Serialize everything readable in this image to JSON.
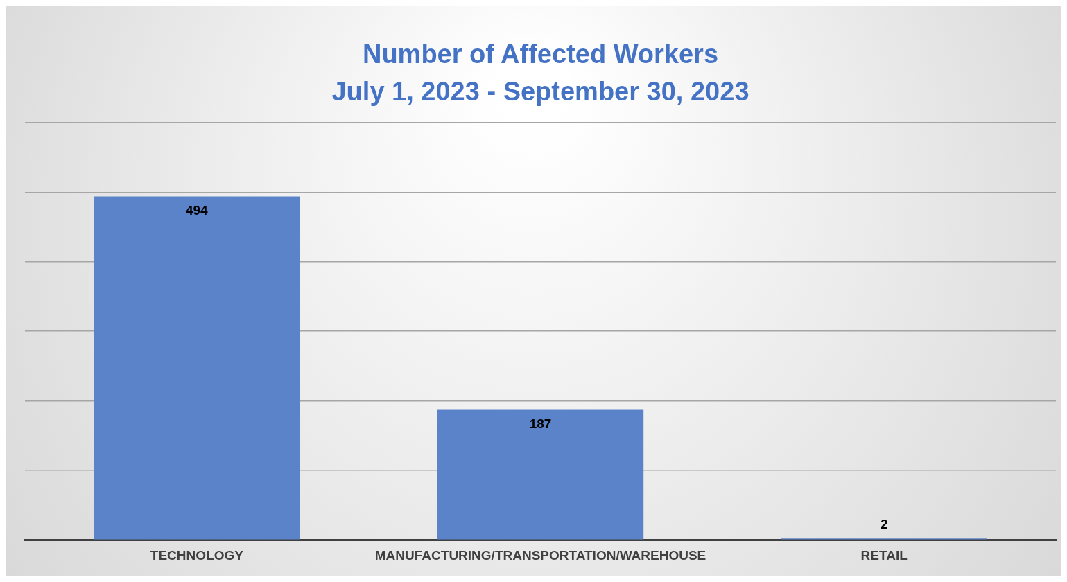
{
  "chart_data": {
    "type": "bar",
    "title": "Number of Affected Workers",
    "subtitle": "July 1, 2023 - September 30, 2023",
    "categories": [
      "TECHNOLOGY",
      "MANUFACTURING/TRANSPORTATION/WAREHOUSE",
      "RETAIL"
    ],
    "values": [
      494,
      187,
      2
    ],
    "color": "#5b83c9",
    "ylim": [
      0,
      600
    ],
    "yticks": [
      {
        "value": 0,
        "label": null
      },
      {
        "value": 100,
        "label": null
      },
      {
        "value": 200,
        "label": null
      },
      {
        "value": 300,
        "label": null
      },
      {
        "value": 400,
        "label": null
      },
      {
        "value": 500,
        "label": null
      },
      {
        "value": 600,
        "label": null
      }
    ],
    "tick_labels": "x",
    "grid": "y",
    "data_labels": true
  }
}
